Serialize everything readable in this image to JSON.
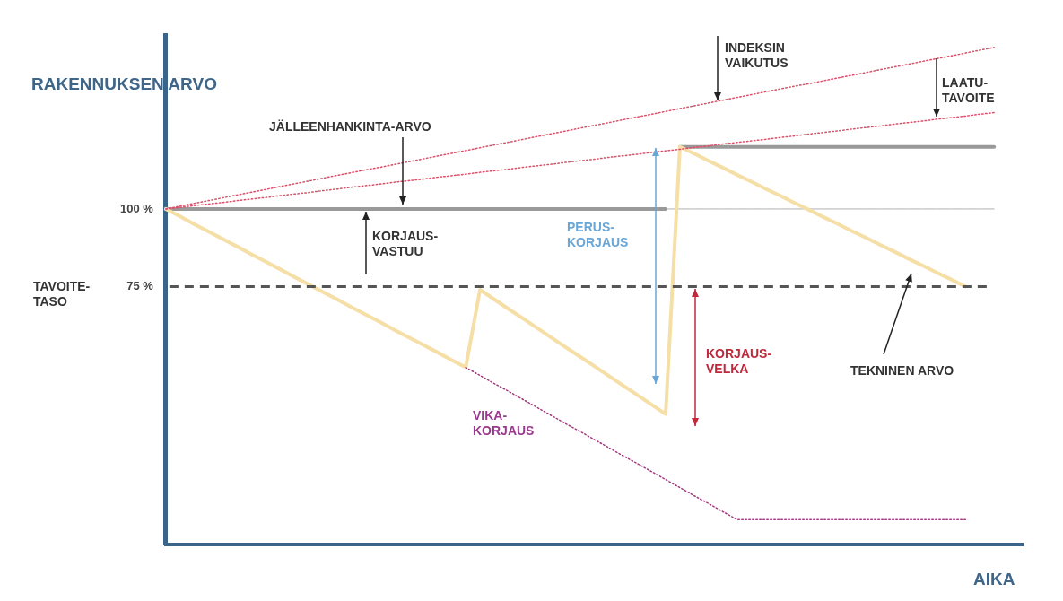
{
  "chart_data": {
    "type": "line",
    "xlabel": "AIKA",
    "ylabel": "RAKENNUKSEN ARVO",
    "categories": [
      null,
      null,
      null,
      null,
      null,
      null,
      null,
      null,
      null,
      null,
      null,
      null,
      null,
      null,
      null,
      null,
      null,
      null,
      null,
      null,
      null,
      null,
      null,
      null,
      null,
      null,
      null,
      null,
      null,
      null,
      null,
      null,
      null,
      null,
      null,
      null,
      null,
      null,
      null,
      null,
      null,
      null,
      null,
      null,
      null,
      null,
      null,
      null,
      null,
      null,
      null,
      null,
      null,
      null,
      null,
      null,
      null,
      null,
      null,
      null,
      null
    ],
    "ylim": [
      -8,
      156
    ],
    "yticks": [
      {
        "value": 100,
        "label": "100 %"
      },
      {
        "value": 75,
        "label": "75 %"
      }
    ],
    "tick_labels": "y",
    "grid": false,
    "legend": false,
    "marker": "none",
    "series": [
      {
        "color": "#f6dfa6",
        "line_style": "solid",
        "values": [
          100,
          97.6,
          95.1,
          92.7,
          90.3,
          87.9,
          85.4,
          83,
          80.6,
          78.1,
          75.7,
          73.3,
          70.9,
          68.4,
          66,
          63.6,
          61.1,
          58.7,
          56.3,
          53.9,
          51.4,
          49,
          74,
          70.9,
          67.8,
          64.8,
          61.7,
          58.6,
          55.5,
          52.5,
          49.4,
          46.3,
          43.2,
          40.2,
          37.1,
          34,
          120,
          117.8,
          115.5,
          113.3,
          111,
          108.8,
          106.5,
          104.3,
          102,
          99.8,
          97.5,
          95.3,
          93,
          90.8,
          88.5,
          86.3,
          84,
          81.8,
          79.5,
          77.3,
          75,
          null,
          null,
          null,
          null
        ]
      },
      {
        "color": "#a13a7e",
        "line_style": "dotted",
        "values": [
          null,
          null,
          null,
          null,
          null,
          null,
          null,
          null,
          null,
          null,
          null,
          null,
          null,
          null,
          null,
          null,
          null,
          null,
          null,
          null,
          null,
          49,
          46.4,
          43.8,
          41.3,
          38.7,
          36.1,
          33.5,
          30.9,
          28.4,
          25.8,
          23.2,
          20.6,
          18.1,
          15.5,
          12.9,
          10.3,
          7.7,
          5.2,
          2.6,
          0,
          0,
          0,
          0,
          0,
          0,
          0,
          0,
          0,
          0,
          0,
          0,
          0,
          0,
          0,
          0,
          0,
          null,
          null,
          null,
          null
        ]
      },
      {
        "color": "#999999",
        "line_style": "solid",
        "values": [
          100,
          100,
          100,
          100,
          100,
          100,
          100,
          100,
          100,
          100,
          100,
          100,
          100,
          100,
          100,
          100,
          100,
          100,
          100,
          100,
          100,
          100,
          100,
          100,
          100,
          100,
          100,
          100,
          100,
          100,
          100,
          100,
          100,
          100,
          100,
          100,
          null,
          null,
          null,
          null,
          null,
          null,
          null,
          null,
          null,
          null,
          null,
          null,
          null,
          null,
          null,
          null,
          null,
          null,
          null,
          null,
          null,
          null,
          null,
          null,
          null
        ]
      },
      {
        "color": "#999999",
        "line_style": "solid",
        "values": [
          null,
          null,
          null,
          null,
          null,
          null,
          null,
          null,
          null,
          null,
          null,
          null,
          null,
          null,
          null,
          null,
          null,
          null,
          null,
          null,
          null,
          null,
          null,
          null,
          null,
          null,
          null,
          null,
          null,
          null,
          null,
          null,
          null,
          null,
          null,
          null,
          120,
          120,
          120,
          120,
          120,
          120,
          120,
          120,
          120,
          120,
          120,
          120,
          120,
          120,
          120,
          120,
          120,
          120,
          120,
          120,
          120,
          120,
          120,
          null,
          null
        ]
      },
      {
        "color": "#b0b0b0",
        "line_style": "solid",
        "values": [
          null,
          null,
          null,
          null,
          null,
          null,
          null,
          null,
          null,
          null,
          null,
          null,
          null,
          null,
          null,
          null,
          null,
          null,
          null,
          null,
          null,
          null,
          null,
          null,
          null,
          null,
          null,
          null,
          null,
          null,
          null,
          null,
          null,
          null,
          null,
          100,
          100,
          100,
          100,
          100,
          100,
          100,
          100,
          100,
          100,
          100,
          100,
          100,
          100,
          100,
          100,
          100,
          100,
          100,
          100,
          100,
          100,
          100,
          100,
          null,
          null
        ]
      },
      {
        "color": "#d9506a",
        "line_style": "dotted",
        "values": [
          100,
          100.9,
          101.8,
          102.7,
          103.6,
          104.5,
          105.4,
          106.3,
          107.2,
          108.1,
          109,
          109.9,
          110.8,
          111.7,
          112.6,
          113.4,
          114.3,
          115.2,
          116.1,
          117,
          117.9,
          118.8,
          119.7,
          120.6,
          121.5,
          122.4,
          123.3,
          124.2,
          125.1,
          126,
          126.9,
          127.8,
          128.7,
          129.6,
          130.5,
          131.4,
          132.3,
          133.2,
          134.1,
          135,
          135.9,
          136.8,
          137.7,
          138.6,
          139.5,
          140.3,
          141.2,
          142.1,
          143,
          143.9,
          144.8,
          145.7,
          146.6,
          147.5,
          148.4,
          149.3,
          150.2,
          151.1,
          152,
          null,
          null
        ]
      },
      {
        "color": "#d9506a",
        "line_style": "dotted",
        "values": [
          100,
          100.5,
          101.1,
          101.6,
          102.1,
          102.7,
          103.2,
          103.7,
          104.3,
          104.8,
          105.3,
          105.9,
          106.4,
          107,
          107.5,
          108,
          108.6,
          109.1,
          109.6,
          110.2,
          110.7,
          111.2,
          111.8,
          112.3,
          112.8,
          113.4,
          113.9,
          114.4,
          115,
          115.5,
          116,
          116.6,
          117.1,
          117.6,
          118.2,
          118.7,
          119.2,
          119.8,
          120.3,
          120.9,
          121.4,
          121.9,
          122.4,
          123,
          123.5,
          124.1,
          124.6,
          125.1,
          125.7,
          126.2,
          126.7,
          127.3,
          127.8,
          128.3,
          128.9,
          129.4,
          129.9,
          130.5,
          131,
          null,
          null
        ]
      }
    ],
    "ref_lines": [
      {
        "axis": "y",
        "value": 75,
        "label": "TAVOITE- TASO",
        "color": "#555555",
        "line_style": "dashed"
      }
    ],
    "annotations": [
      "JÄLLEENHANKINTA-ARVO",
      "INDEKSIN VAIKUTUS",
      "LAATU- TAVOITE",
      "KORJAUS- VASTUU",
      "PERUS- KORJAUS",
      "KORJAUS- VELKA",
      "VIKA- KORJAUS",
      "TEKNINEN ARVO"
    ]
  }
}
